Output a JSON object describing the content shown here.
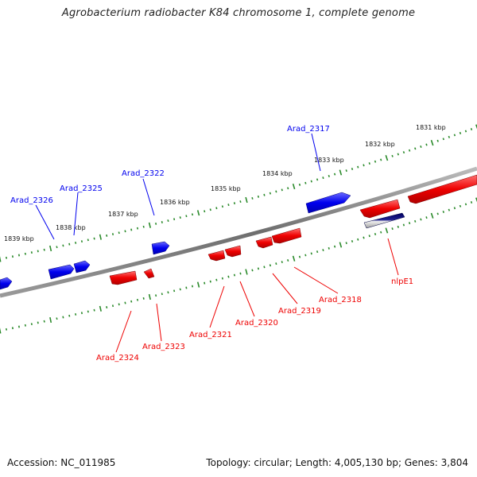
{
  "title": "Agrobacterium radiobacter K84 chromosome 1, complete genome",
  "footer": {
    "accession": "Accession: NC_011985",
    "summary": "Topology: circular; Length: 4,005,130 bp; Genes: 3,804"
  },
  "colors": {
    "forward": "#0000ee",
    "reverse": "#ee0000",
    "other": "#000080",
    "ticks": "#2a8a2a",
    "backbone": "#777777"
  },
  "kbp_labels": [
    "1831 kbp",
    "1832 kbp",
    "1833 kbp",
    "1834 kbp",
    "1835 kbp",
    "1836 kbp",
    "1837 kbp",
    "1838 kbp",
    "1839 kbp"
  ],
  "genes": [
    {
      "name": "Arad_2317",
      "strand": "+"
    },
    {
      "name": "Arad_2322",
      "strand": "+"
    },
    {
      "name": "Arad_2325",
      "strand": "+"
    },
    {
      "name": "Arad_2326",
      "strand": "+"
    },
    {
      "name": "nlpE1",
      "strand": "-"
    },
    {
      "name": "Arad_2318",
      "strand": "-"
    },
    {
      "name": "Arad_2319",
      "strand": "-"
    },
    {
      "name": "Arad_2320",
      "strand": "-"
    },
    {
      "name": "Arad_2321",
      "strand": "-"
    },
    {
      "name": "Arad_2323",
      "strand": "-"
    },
    {
      "name": "Arad_2324",
      "strand": "-"
    }
  ]
}
